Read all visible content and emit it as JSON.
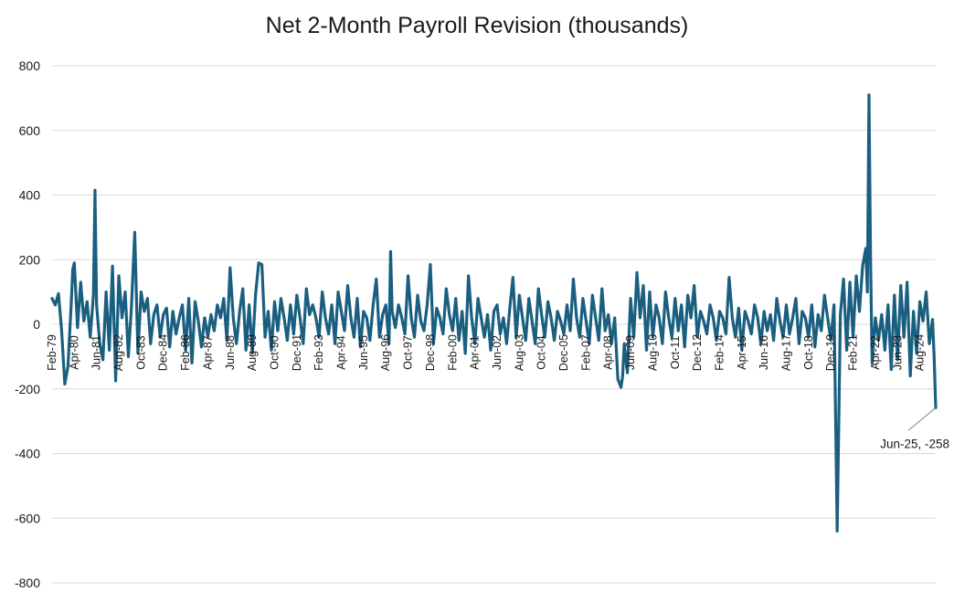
{
  "chart_data": {
    "type": "line",
    "title": "Net 2-Month Payroll Revision (thousands)",
    "xlabel": "",
    "ylabel": "",
    "ylim": [
      -800,
      800
    ],
    "yticks": [
      "800",
      "600",
      "400",
      "200",
      "0",
      "-200",
      "-400",
      "-600",
      "-800"
    ],
    "grid": true,
    "x_tick_labels": [
      "Feb-79",
      "Apr-80",
      "Jun-81",
      "Aug-82",
      "Oct-83",
      "Dec-84",
      "Feb-86",
      "Apr-87",
      "Jun-88",
      "Aug-89",
      "Oct-90",
      "Dec-91",
      "Feb-93",
      "Apr-94",
      "Jun-95",
      "Aug-96",
      "Oct-97",
      "Dec-98",
      "Feb-00",
      "Apr-01",
      "Jun-02",
      "Aug-03",
      "Oct-04",
      "Dec-05",
      "Feb-07",
      "Apr-08",
      "Jun-09",
      "Aug-10",
      "Oct-11",
      "Dec-12",
      "Feb-14",
      "Apr-15",
      "Jun-16",
      "Aug-17",
      "Oct-18",
      "Dec-19",
      "Feb-21",
      "Apr-22",
      "Jun-23",
      "Aug-24"
    ],
    "x_start": "Feb-79",
    "x_end": "Jun-25",
    "series": [
      {
        "color": "#1a5f80",
        "points": [
          [
            "Feb-79",
            80
          ],
          [
            "Apr-79",
            60
          ],
          [
            "Jun-79",
            95
          ],
          [
            "Aug-79",
            -20
          ],
          [
            "Oct-79",
            -185
          ],
          [
            "Dec-79",
            -130
          ],
          [
            "Feb-80",
            60
          ],
          [
            "Mar-80",
            170
          ],
          [
            "Apr-80",
            190
          ],
          [
            "Jun-80",
            -10
          ],
          [
            "Aug-80",
            130
          ],
          [
            "Oct-80",
            10
          ],
          [
            "Dec-80",
            70
          ],
          [
            "Feb-81",
            -40
          ],
          [
            "Apr-81",
            90
          ],
          [
            "May-81",
            415
          ],
          [
            "Jun-81",
            60
          ],
          [
            "Aug-81",
            -60
          ],
          [
            "Oct-81",
            -110
          ],
          [
            "Dec-81",
            100
          ],
          [
            "Feb-82",
            -80
          ],
          [
            "Apr-82",
            180
          ],
          [
            "Jun-82",
            -175
          ],
          [
            "Aug-82",
            150
          ],
          [
            "Oct-82",
            20
          ],
          [
            "Dec-82",
            100
          ],
          [
            "Feb-83",
            -100
          ],
          [
            "Apr-83",
            60
          ],
          [
            "Jun-83",
            285
          ],
          [
            "Aug-83",
            -90
          ],
          [
            "Oct-83",
            100
          ],
          [
            "Dec-83",
            40
          ],
          [
            "Feb-84",
            80
          ],
          [
            "Apr-84",
            -60
          ],
          [
            "Jun-84",
            30
          ],
          [
            "Aug-84",
            60
          ],
          [
            "Oct-84",
            -40
          ],
          [
            "Dec-84",
            30
          ],
          [
            "Feb-85",
            50
          ],
          [
            "Apr-85",
            -70
          ],
          [
            "Jun-85",
            40
          ],
          [
            "Aug-85",
            -30
          ],
          [
            "Oct-85",
            20
          ],
          [
            "Dec-85",
            60
          ],
          [
            "Feb-86",
            -80
          ],
          [
            "Apr-86",
            80
          ],
          [
            "Jun-86",
            -120
          ],
          [
            "Aug-86",
            70
          ],
          [
            "Oct-86",
            10
          ],
          [
            "Dec-86",
            -70
          ],
          [
            "Feb-87",
            20
          ],
          [
            "Apr-87",
            -40
          ],
          [
            "Jun-87",
            30
          ],
          [
            "Aug-87",
            -20
          ],
          [
            "Oct-87",
            60
          ],
          [
            "Dec-87",
            20
          ],
          [
            "Feb-88",
            80
          ],
          [
            "Apr-88",
            -50
          ],
          [
            "Jun-88",
            175
          ],
          [
            "Aug-88",
            20
          ],
          [
            "Oct-88",
            -60
          ],
          [
            "Dec-88",
            40
          ],
          [
            "Feb-89",
            110
          ],
          [
            "Apr-89",
            -80
          ],
          [
            "Jun-89",
            60
          ],
          [
            "Aug-89",
            -90
          ],
          [
            "Oct-89",
            90
          ],
          [
            "Dec-89",
            190
          ],
          [
            "Feb-90",
            185
          ],
          [
            "Apr-90",
            -40
          ],
          [
            "Jun-90",
            40
          ],
          [
            "Aug-90",
            -80
          ],
          [
            "Oct-90",
            70
          ],
          [
            "Dec-90",
            -20
          ],
          [
            "Feb-91",
            80
          ],
          [
            "Apr-91",
            20
          ],
          [
            "Jun-91",
            -50
          ],
          [
            "Aug-91",
            60
          ],
          [
            "Oct-91",
            -30
          ],
          [
            "Dec-91",
            90
          ],
          [
            "Feb-92",
            20
          ],
          [
            "Apr-92",
            -60
          ],
          [
            "Jun-92",
            110
          ],
          [
            "Aug-92",
            30
          ],
          [
            "Oct-92",
            60
          ],
          [
            "Dec-92",
            20
          ],
          [
            "Feb-93",
            -40
          ],
          [
            "Apr-93",
            100
          ],
          [
            "Jun-93",
            20
          ],
          [
            "Aug-93",
            -30
          ],
          [
            "Oct-93",
            60
          ],
          [
            "Dec-93",
            -60
          ],
          [
            "Feb-94",
            100
          ],
          [
            "Apr-94",
            40
          ],
          [
            "Jun-94",
            -20
          ],
          [
            "Aug-94",
            120
          ],
          [
            "Oct-94",
            20
          ],
          [
            "Dec-94",
            -40
          ],
          [
            "Feb-95",
            80
          ],
          [
            "Apr-95",
            -70
          ],
          [
            "Jun-95",
            40
          ],
          [
            "Aug-95",
            20
          ],
          [
            "Oct-95",
            -50
          ],
          [
            "Dec-95",
            60
          ],
          [
            "Feb-96",
            140
          ],
          [
            "Apr-96",
            -40
          ],
          [
            "Jun-96",
            30
          ],
          [
            "Aug-96",
            60
          ],
          [
            "Oct-96",
            -60
          ],
          [
            "Nov-96",
            225
          ],
          [
            "Dec-96",
            40
          ],
          [
            "Feb-97",
            -10
          ],
          [
            "Apr-97",
            60
          ],
          [
            "Jun-97",
            20
          ],
          [
            "Aug-97",
            -30
          ],
          [
            "Oct-97",
            150
          ],
          [
            "Dec-97",
            20
          ],
          [
            "Feb-98",
            -40
          ],
          [
            "Apr-98",
            90
          ],
          [
            "Jun-98",
            10
          ],
          [
            "Aug-98",
            -20
          ],
          [
            "Oct-98",
            60
          ],
          [
            "Dec-98",
            185
          ],
          [
            "Feb-99",
            -60
          ],
          [
            "Apr-99",
            50
          ],
          [
            "Jun-99",
            20
          ],
          [
            "Aug-99",
            -30
          ],
          [
            "Oct-99",
            110
          ],
          [
            "Dec-99",
            30
          ],
          [
            "Feb-00",
            -20
          ],
          [
            "Apr-00",
            80
          ],
          [
            "Jun-00",
            -50
          ],
          [
            "Aug-00",
            40
          ],
          [
            "Oct-00",
            -90
          ],
          [
            "Dec-00",
            150
          ],
          [
            "Feb-01",
            20
          ],
          [
            "Apr-01",
            -60
          ],
          [
            "Jun-01",
            80
          ],
          [
            "Aug-01",
            20
          ],
          [
            "Oct-01",
            -40
          ],
          [
            "Dec-01",
            30
          ],
          [
            "Feb-02",
            -80
          ],
          [
            "Apr-02",
            40
          ],
          [
            "Jun-02",
            60
          ],
          [
            "Aug-02",
            -30
          ],
          [
            "Oct-02",
            20
          ],
          [
            "Dec-02",
            -60
          ],
          [
            "Feb-03",
            50
          ],
          [
            "Apr-03",
            145
          ],
          [
            "Jun-03",
            -40
          ],
          [
            "Aug-03",
            90
          ],
          [
            "Oct-03",
            20
          ],
          [
            "Dec-03",
            -50
          ],
          [
            "Feb-04",
            80
          ],
          [
            "Apr-04",
            10
          ],
          [
            "Jun-04",
            -60
          ],
          [
            "Aug-04",
            110
          ],
          [
            "Oct-04",
            30
          ],
          [
            "Dec-04",
            -40
          ],
          [
            "Feb-05",
            70
          ],
          [
            "Apr-05",
            20
          ],
          [
            "Jun-05",
            -50
          ],
          [
            "Aug-05",
            40
          ],
          [
            "Oct-05",
            10
          ],
          [
            "Dec-05",
            -30
          ],
          [
            "Feb-06",
            60
          ],
          [
            "Apr-06",
            -20
          ],
          [
            "Jun-06",
            140
          ],
          [
            "Aug-06",
            20
          ],
          [
            "Oct-06",
            -40
          ],
          [
            "Dec-06",
            80
          ],
          [
            "Feb-07",
            10
          ],
          [
            "Apr-07",
            -60
          ],
          [
            "Jun-07",
            90
          ],
          [
            "Aug-07",
            20
          ],
          [
            "Oct-07",
            -50
          ],
          [
            "Dec-07",
            110
          ],
          [
            "Feb-08",
            -20
          ],
          [
            "Apr-08",
            30
          ],
          [
            "Jun-08",
            -60
          ],
          [
            "Aug-08",
            20
          ],
          [
            "Oct-08",
            -170
          ],
          [
            "Dec-08",
            -195
          ],
          [
            "Jan-09",
            -160
          ],
          [
            "Feb-09",
            -60
          ],
          [
            "Apr-09",
            -150
          ],
          [
            "Jun-09",
            80
          ],
          [
            "Aug-09",
            -40
          ],
          [
            "Oct-09",
            160
          ],
          [
            "Dec-09",
            20
          ],
          [
            "Feb-10",
            120
          ],
          [
            "Apr-10",
            -80
          ],
          [
            "Jun-10",
            100
          ],
          [
            "Aug-10",
            -40
          ],
          [
            "Oct-10",
            60
          ],
          [
            "Dec-10",
            20
          ],
          [
            "Feb-11",
            -60
          ],
          [
            "Apr-11",
            100
          ],
          [
            "Jun-11",
            20
          ],
          [
            "Aug-11",
            -40
          ],
          [
            "Oct-11",
            80
          ],
          [
            "Dec-11",
            -20
          ],
          [
            "Feb-12",
            60
          ],
          [
            "Apr-12",
            -70
          ],
          [
            "Jun-12",
            90
          ],
          [
            "Aug-12",
            20
          ],
          [
            "Oct-12",
            120
          ],
          [
            "Dec-12",
            -40
          ],
          [
            "Feb-13",
            40
          ],
          [
            "Apr-13",
            10
          ],
          [
            "Jun-13",
            -30
          ],
          [
            "Aug-13",
            60
          ],
          [
            "Oct-13",
            20
          ],
          [
            "Dec-13",
            -50
          ],
          [
            "Feb-14",
            40
          ],
          [
            "Apr-14",
            20
          ],
          [
            "Jun-14",
            -30
          ],
          [
            "Aug-14",
            145
          ],
          [
            "Oct-14",
            20
          ],
          [
            "Dec-14",
            -40
          ],
          [
            "Feb-15",
            50
          ],
          [
            "Apr-15",
            -80
          ],
          [
            "Jun-15",
            40
          ],
          [
            "Aug-15",
            10
          ],
          [
            "Oct-15",
            -30
          ],
          [
            "Dec-15",
            60
          ],
          [
            "Feb-16",
            20
          ],
          [
            "Apr-16",
            -60
          ],
          [
            "Jun-16",
            40
          ],
          [
            "Aug-16",
            -20
          ],
          [
            "Oct-16",
            30
          ],
          [
            "Dec-16",
            -50
          ],
          [
            "Feb-17",
            80
          ],
          [
            "Apr-17",
            10
          ],
          [
            "Jun-17",
            -40
          ],
          [
            "Aug-17",
            60
          ],
          [
            "Oct-17",
            -30
          ],
          [
            "Dec-17",
            20
          ],
          [
            "Feb-18",
            80
          ],
          [
            "Apr-18",
            -60
          ],
          [
            "Jun-18",
            40
          ],
          [
            "Aug-18",
            20
          ],
          [
            "Oct-18",
            -40
          ],
          [
            "Dec-18",
            60
          ],
          [
            "Feb-19",
            -70
          ],
          [
            "Apr-19",
            30
          ],
          [
            "Jun-19",
            -20
          ],
          [
            "Aug-19",
            90
          ],
          [
            "Oct-19",
            20
          ],
          [
            "Dec-19",
            -50
          ],
          [
            "Feb-20",
            60
          ],
          [
            "Apr-20",
            -640
          ],
          [
            "Jun-20",
            30
          ],
          [
            "Aug-20",
            140
          ],
          [
            "Oct-20",
            -80
          ],
          [
            "Dec-20",
            130
          ],
          [
            "Feb-21",
            -40
          ],
          [
            "Apr-21",
            150
          ],
          [
            "Jun-21",
            40
          ],
          [
            "Aug-21",
            180
          ],
          [
            "Oct-21",
            235
          ],
          [
            "Nov-21",
            100
          ],
          [
            "Dec-21",
            710
          ],
          [
            "Jan-22",
            200
          ],
          [
            "Feb-22",
            -120
          ],
          [
            "Apr-22",
            20
          ],
          [
            "Jun-22",
            -50
          ],
          [
            "Aug-22",
            30
          ],
          [
            "Oct-22",
            -80
          ],
          [
            "Dec-22",
            60
          ],
          [
            "Feb-23",
            -140
          ],
          [
            "Apr-23",
            90
          ],
          [
            "Jun-23",
            -110
          ],
          [
            "Aug-23",
            120
          ],
          [
            "Oct-23",
            -40
          ],
          [
            "Dec-23",
            130
          ],
          [
            "Feb-24",
            -160
          ],
          [
            "Apr-24",
            40
          ],
          [
            "Jun-24",
            -90
          ],
          [
            "Aug-24",
            70
          ],
          [
            "Oct-24",
            10
          ],
          [
            "Dec-24",
            100
          ],
          [
            "Feb-25",
            -60
          ],
          [
            "Apr-25",
            15
          ],
          [
            "May-25",
            -100
          ],
          [
            "Jun-25",
            -258
          ]
        ]
      }
    ],
    "annotation": {
      "text": "Jun-25, -258",
      "x": "Jun-25",
      "y": -258
    }
  }
}
